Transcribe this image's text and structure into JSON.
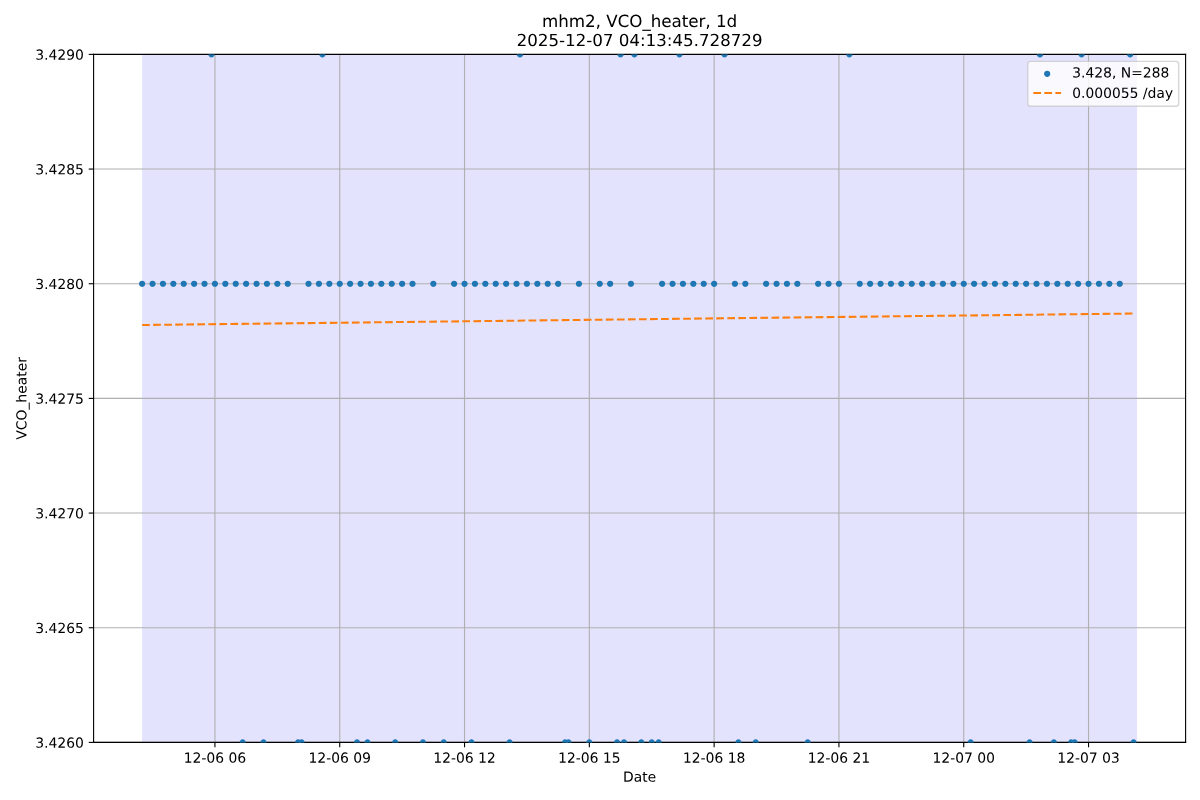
{
  "chart_data": {
    "type": "scatter",
    "title": "mhm2, VCO_heater, 1d\n2025-12-07 04:13:45.728729",
    "xlabel": "Date",
    "ylabel": "VCO_heater",
    "xlim": [
      "2025-12-06T03:05",
      "2025-12-07T05:20"
    ],
    "xticks": [
      {
        "value": "2025-12-06T06:00",
        "label": "12-06 06"
      },
      {
        "value": "2025-12-06T09:00",
        "label": "12-06 09"
      },
      {
        "value": "2025-12-06T12:00",
        "label": "12-06 12"
      },
      {
        "value": "2025-12-06T15:00",
        "label": "12-06 15"
      },
      {
        "value": "2025-12-06T18:00",
        "label": "12-06 18"
      },
      {
        "value": "2025-12-06T21:00",
        "label": "12-06 21"
      },
      {
        "value": "2025-12-07T00:00",
        "label": "12-07 00"
      },
      {
        "value": "2025-12-07T03:00",
        "label": "12-07 03"
      }
    ],
    "ylim": [
      3.426,
      3.429
    ],
    "yticks": [
      {
        "value": 3.426,
        "label": "3.4260"
      },
      {
        "value": 3.4265,
        "label": "3.4265"
      },
      {
        "value": 3.427,
        "label": "3.4270"
      },
      {
        "value": 3.4275,
        "label": "3.4275"
      },
      {
        "value": 3.428,
        "label": "3.4280"
      },
      {
        "value": 3.4285,
        "label": "3.4285"
      },
      {
        "value": 3.429,
        "label": "3.4290"
      }
    ],
    "grid": true,
    "legend": "top right",
    "marker": "circle",
    "bands": [
      {
        "axis": "x",
        "from": "2025-12-06T04:15",
        "to": "2025-12-07T04:10",
        "color": "#e3e3fe"
      }
    ],
    "series": [
      {
        "name": "3.428, N=288",
        "color": "#1f77b4",
        "x": [
          "2025-12-06T04:15",
          "2025-12-06T04:30",
          "2025-12-06T04:45",
          "2025-12-06T05:00",
          "2025-12-06T05:15",
          "2025-12-06T05:30",
          "2025-12-06T05:45",
          "2025-12-06T06:00",
          "2025-12-06T06:15",
          "2025-12-06T06:30",
          "2025-12-06T06:45",
          "2025-12-06T07:00",
          "2025-12-06T07:15",
          "2025-12-06T07:30",
          "2025-12-06T07:45",
          "2025-12-06T08:15",
          "2025-12-06T08:30",
          "2025-12-06T08:45",
          "2025-12-06T09:00",
          "2025-12-06T09:15",
          "2025-12-06T09:30",
          "2025-12-06T09:45",
          "2025-12-06T10:00",
          "2025-12-06T10:15",
          "2025-12-06T10:30",
          "2025-12-06T10:45",
          "2025-12-06T11:15",
          "2025-12-06T11:45",
          "2025-12-06T12:00",
          "2025-12-06T12:15",
          "2025-12-06T12:30",
          "2025-12-06T12:45",
          "2025-12-06T13:00",
          "2025-12-06T13:15",
          "2025-12-06T13:30",
          "2025-12-06T13:45",
          "2025-12-06T14:00",
          "2025-12-06T14:15",
          "2025-12-06T14:45",
          "2025-12-06T15:15",
          "2025-12-06T15:30",
          "2025-12-06T16:00",
          "2025-12-06T16:45",
          "2025-12-06T17:00",
          "2025-12-06T17:15",
          "2025-12-06T17:30",
          "2025-12-06T17:45",
          "2025-12-06T18:00",
          "2025-12-06T18:30",
          "2025-12-06T18:45",
          "2025-12-06T19:15",
          "2025-12-06T19:30",
          "2025-12-06T19:45",
          "2025-12-06T20:00",
          "2025-12-06T20:30",
          "2025-12-06T20:45",
          "2025-12-06T21:00",
          "2025-12-06T21:30",
          "2025-12-06T21:45",
          "2025-12-06T22:00",
          "2025-12-06T22:15",
          "2025-12-06T22:30",
          "2025-12-06T22:45",
          "2025-12-06T23:00",
          "2025-12-06T23:15",
          "2025-12-06T23:30",
          "2025-12-06T23:45",
          "2025-12-07T00:00",
          "2025-12-07T00:15",
          "2025-12-07T00:30",
          "2025-12-07T00:45",
          "2025-12-07T01:00",
          "2025-12-07T01:15",
          "2025-12-07T01:30",
          "2025-12-07T01:45",
          "2025-12-07T02:00",
          "2025-12-07T02:15",
          "2025-12-07T02:30",
          "2025-12-07T02:45",
          "2025-12-07T03:00",
          "2025-12-07T03:15",
          "2025-12-07T03:30",
          "2025-12-07T03:45",
          "2025-12-06T05:55",
          "2025-12-06T08:35",
          "2025-12-06T13:20",
          "2025-12-06T15:45",
          "2025-12-06T16:05",
          "2025-12-06T17:10",
          "2025-12-06T18:15",
          "2025-12-06T21:15",
          "2025-12-07T01:50",
          "2025-12-07T02:50",
          "2025-12-07T04:00",
          "2025-12-06T06:40",
          "2025-12-06T07:10",
          "2025-12-06T08:00",
          "2025-12-06T08:05",
          "2025-12-06T09:25",
          "2025-12-06T09:40",
          "2025-12-06T10:20",
          "2025-12-06T11:00",
          "2025-12-06T11:30",
          "2025-12-06T12:10",
          "2025-12-06T13:05",
          "2025-12-06T14:25",
          "2025-12-06T14:30",
          "2025-12-06T15:00",
          "2025-12-06T15:40",
          "2025-12-06T15:50",
          "2025-12-06T16:15",
          "2025-12-06T16:30",
          "2025-12-06T16:40",
          "2025-12-06T18:35",
          "2025-12-06T19:00",
          "2025-12-06T20:15",
          "2025-12-07T00:10",
          "2025-12-07T01:35",
          "2025-12-07T02:10",
          "2025-12-07T02:35",
          "2025-12-07T02:40",
          "2025-12-07T04:05"
        ],
        "values": [
          3.428,
          3.428,
          3.428,
          3.428,
          3.428,
          3.428,
          3.428,
          3.428,
          3.428,
          3.428,
          3.428,
          3.428,
          3.428,
          3.428,
          3.428,
          3.428,
          3.428,
          3.428,
          3.428,
          3.428,
          3.428,
          3.428,
          3.428,
          3.428,
          3.428,
          3.428,
          3.428,
          3.428,
          3.428,
          3.428,
          3.428,
          3.428,
          3.428,
          3.428,
          3.428,
          3.428,
          3.428,
          3.428,
          3.428,
          3.428,
          3.428,
          3.428,
          3.428,
          3.428,
          3.428,
          3.428,
          3.428,
          3.428,
          3.428,
          3.428,
          3.428,
          3.428,
          3.428,
          3.428,
          3.428,
          3.428,
          3.428,
          3.428,
          3.428,
          3.428,
          3.428,
          3.428,
          3.428,
          3.428,
          3.428,
          3.428,
          3.428,
          3.428,
          3.428,
          3.428,
          3.428,
          3.428,
          3.428,
          3.428,
          3.428,
          3.428,
          3.428,
          3.428,
          3.428,
          3.428,
          3.428,
          3.428,
          3.428,
          3.429,
          3.429,
          3.429,
          3.429,
          3.429,
          3.429,
          3.429,
          3.429,
          3.429,
          3.429,
          3.429,
          3.426,
          3.426,
          3.426,
          3.426,
          3.426,
          3.426,
          3.426,
          3.426,
          3.426,
          3.426,
          3.426,
          3.426,
          3.426,
          3.426,
          3.426,
          3.426,
          3.426,
          3.426,
          3.426,
          3.426,
          3.426,
          3.426,
          3.426,
          3.426,
          3.426,
          3.426,
          3.426,
          3.426
        ]
      },
      {
        "name": "0.000055 /day",
        "color": "#ff7f0e",
        "type": "line",
        "line_style": "dashed",
        "marker": "none",
        "x": [
          "2025-12-06T04:15",
          "2025-12-07T04:05"
        ],
        "values": [
          3.42782,
          3.42787
        ]
      }
    ]
  }
}
